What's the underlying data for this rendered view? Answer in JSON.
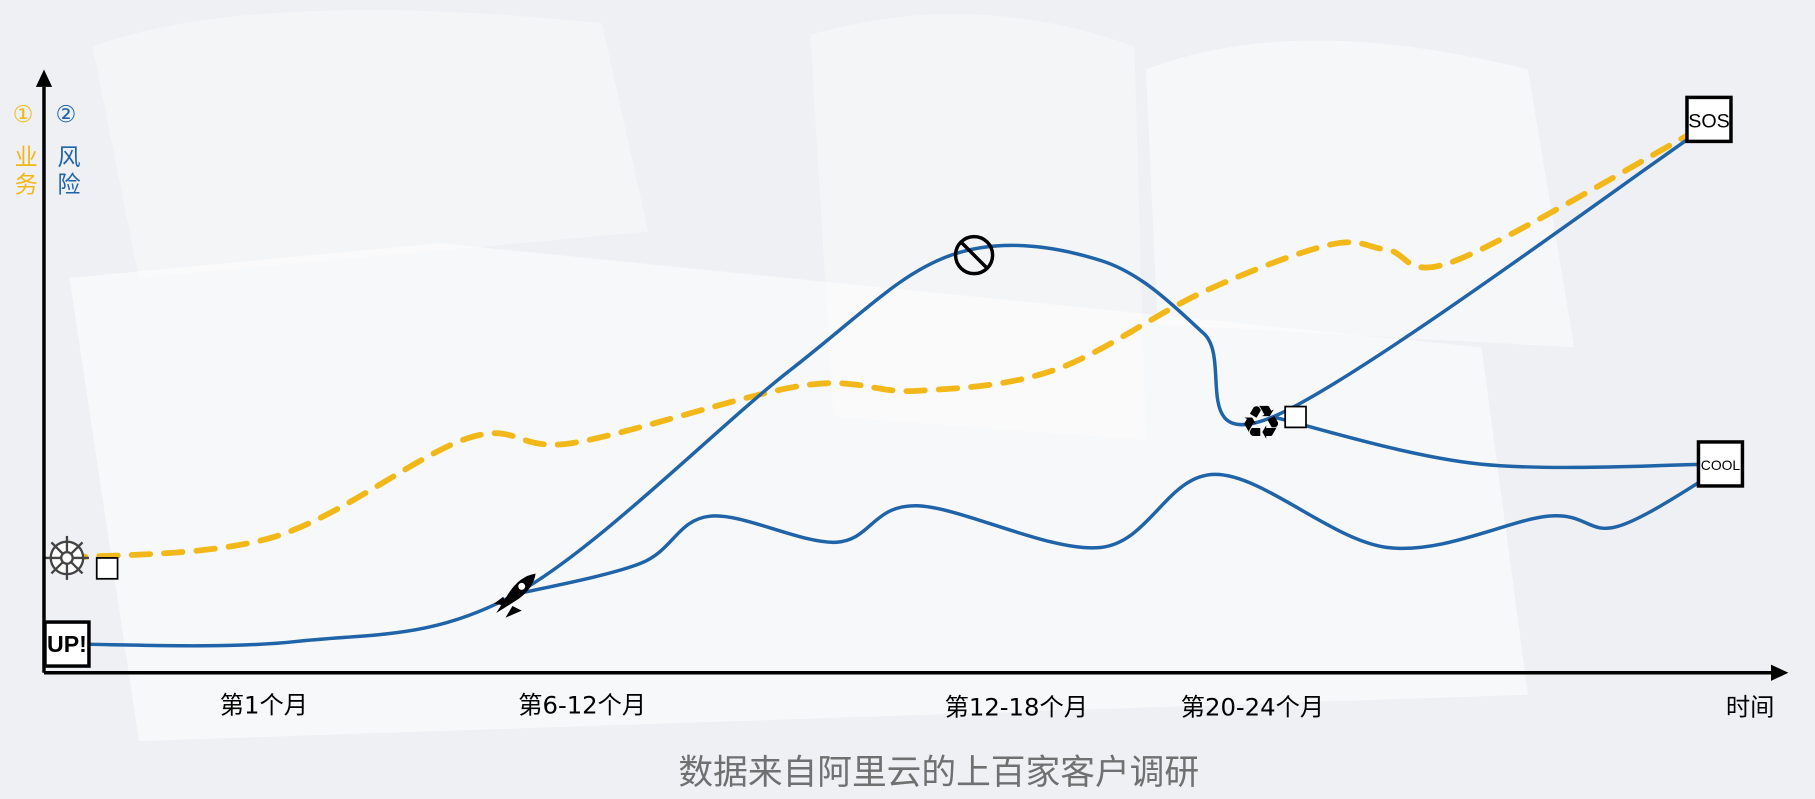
{
  "chart_data": {
    "type": "line",
    "caption": "数据来自阿里云的上百家客户调研",
    "xlabel": "时间",
    "ylabel_1": "① 业务",
    "ylabel_2": "② 风险",
    "x_ticks": [
      "第1个月",
      "第6-12个月",
      "第12-18个月",
      "第20-24个月"
    ],
    "colors": {
      "business": "#f2b81a",
      "risk": "#1f63a8",
      "axis": "#000000",
      "caption": "#707070"
    },
    "series": [
      {
        "key": "business",
        "style": "dashed",
        "points": [
          [
            0.2,
            2.2
          ],
          [
            2,
            2.6
          ],
          [
            3.7,
            4.5
          ],
          [
            4.6,
            4.4
          ],
          [
            6.6,
            5.5
          ],
          [
            7.6,
            5.4
          ],
          [
            8.8,
            5.8
          ],
          [
            10.1,
            7.3
          ],
          [
            11.2,
            8.2
          ],
          [
            11.7,
            8.1
          ],
          [
            12.3,
            7.9
          ],
          [
            14.4,
            10.4
          ]
        ]
      },
      {
        "key": "risk",
        "style": "solid",
        "points": [
          [
            0.2,
            0.55
          ],
          [
            2.2,
            0.6
          ],
          [
            4.1,
            1.5
          ],
          [
            6.5,
            5.8
          ],
          [
            7.9,
            8.0
          ],
          [
            9.2,
            7.9
          ],
          [
            10.1,
            6.5
          ],
          [
            10.7,
            4.9
          ],
          [
            14.5,
            10.5
          ]
        ]
      },
      {
        "key": "risk",
        "style": "solid",
        "points": [
          [
            10.7,
            4.9
          ],
          [
            12.5,
            4.0
          ],
          [
            14.6,
            4.0
          ]
        ]
      },
      {
        "key": "risk",
        "style": "solid",
        "points": [
          [
            4.1,
            1.5
          ],
          [
            5.2,
            2.1
          ],
          [
            5.8,
            3.0
          ],
          [
            6.9,
            2.5
          ],
          [
            7.6,
            3.2
          ],
          [
            9.2,
            2.4
          ],
          [
            10.2,
            3.8
          ],
          [
            11.7,
            2.4
          ],
          [
            13.1,
            3.0
          ],
          [
            13.7,
            2.8
          ],
          [
            14.6,
            3.9
          ]
        ]
      }
    ],
    "markers": [
      {
        "icon": "up-box-icon",
        "text": "UP!",
        "x": 0.2,
        "y": 0.55
      },
      {
        "icon": "wheel-icon",
        "x": 0.2,
        "y": 2.2
      },
      {
        "icon": "rocket-icon",
        "x": 4.1,
        "y": 1.5
      },
      {
        "icon": "prohibited-icon",
        "x": 8.1,
        "y": 8.0
      },
      {
        "icon": "recycle-icon",
        "x": 10.6,
        "y": 4.8
      },
      {
        "icon": "sos-box-icon",
        "text": "SOS",
        "x": 14.5,
        "y": 10.6
      },
      {
        "icon": "cool-box-icon",
        "text": "COOL",
        "x": 14.6,
        "y": 4.0
      }
    ],
    "small_boxes": [
      {
        "icon": "small-square-icon",
        "x": 0.55,
        "y": 2.0
      },
      {
        "icon": "small-square-icon",
        "x": 10.9,
        "y": 4.9
      }
    ],
    "xlim": [
      0,
      15
    ],
    "ylim": [
      0,
      12
    ],
    "grid": false,
    "legend": "none"
  }
}
